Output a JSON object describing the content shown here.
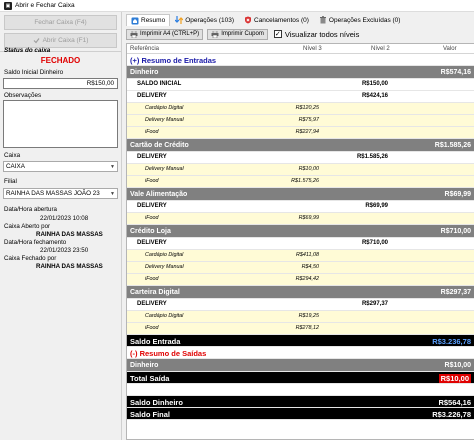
{
  "window": {
    "title": "Abrir e Fechar Caixa"
  },
  "left": {
    "fechar_label": "Fechar Caixa (F4)",
    "abrir_label": "Abrir Caixa (F1)",
    "status_label": "Status do caixa",
    "status_value": "FECHADO",
    "saldo_inicial_label": "Saldo Inicial Dinheiro",
    "saldo_inicial_value": "R$150,00",
    "observacoes_label": "Observações",
    "caixa_label": "Caixa",
    "caixa_value": "CAIXA",
    "filial_label": "Filial",
    "filial_value": "RAINHA DAS MASSAS JOÃO 23",
    "abertura_label": "Data/Hora abertura",
    "abertura_value": "22/01/2023 10:08",
    "aberto_por_label": "Caixa Aberto por",
    "aberto_por_value": "RAINHA DAS MASSAS",
    "fechamento_label": "Data/Hora fechamento",
    "fechamento_value": "22/01/2023 23:50",
    "fechado_por_label": "Caixa Fechado por",
    "fechado_por_value": "RAINHA DAS MASSAS"
  },
  "tabs": [
    {
      "label": "Resumo"
    },
    {
      "label": "Operações (103)"
    },
    {
      "label": "Cancelamentos (0)"
    },
    {
      "label": "Operações Excluídas (0)"
    }
  ],
  "toolbar": {
    "print_a4": "Imprimir A4 (CTRL+P)",
    "print_cupom": "Imprimir Cupom",
    "visualizar": "Visualizar todos níveis"
  },
  "grid": {
    "headers": {
      "ref": "Referência",
      "n3": "Nível 3",
      "n2": "Nível 2",
      "valor": "Valor"
    },
    "rows": [
      {
        "kind": "sec",
        "ref": "(+) Resumo de Entradas"
      },
      {
        "kind": "grey",
        "ref": "Dinheiro",
        "valor": "R$574,16"
      },
      {
        "kind": "white",
        "ref": "SALDO INICIAL",
        "n2": "R$150,00"
      },
      {
        "kind": "white",
        "ref": "DELIVERY",
        "n2": "R$424,16"
      },
      {
        "kind": "sub",
        "ref": "Cardápio Digital",
        "n3": "R$120,25"
      },
      {
        "kind": "sub",
        "ref": "Delivery Manual",
        "n3": "R$75,97"
      },
      {
        "kind": "sub",
        "ref": "iFood",
        "n3": "R$227,94"
      },
      {
        "kind": "grey",
        "ref": "Cartão de Crédito",
        "valor": "R$1.585,26"
      },
      {
        "kind": "white",
        "ref": "DELIVERY",
        "n2": "R$1.585,26"
      },
      {
        "kind": "sub",
        "ref": "Delivery Manual",
        "n3": "R$10,00"
      },
      {
        "kind": "sub",
        "ref": "iFood",
        "n3": "R$1.575,26"
      },
      {
        "kind": "grey",
        "ref": "Vale Alimentação",
        "valor": "R$69,99"
      },
      {
        "kind": "white",
        "ref": "DELIVERY",
        "n2": "R$69,99"
      },
      {
        "kind": "sub",
        "ref": "iFood",
        "n3": "R$69,99"
      },
      {
        "kind": "grey",
        "ref": "Crédito Loja",
        "valor": "R$710,00"
      },
      {
        "kind": "white",
        "ref": "DELIVERY",
        "n2": "R$710,00"
      },
      {
        "kind": "sub",
        "ref": "Cardápio Digital",
        "n3": "R$411,08"
      },
      {
        "kind": "sub",
        "ref": "Delivery Manual",
        "n3": "R$4,50"
      },
      {
        "kind": "sub",
        "ref": "iFood",
        "n3": "R$294,42"
      },
      {
        "kind": "grey",
        "ref": "Carteira Digital",
        "valor": "R$297,37"
      },
      {
        "kind": "white",
        "ref": "DELIVERY",
        "n2": "R$297,37"
      },
      {
        "kind": "sub",
        "ref": "Cardápio Digital",
        "n3": "R$19,25"
      },
      {
        "kind": "sub",
        "ref": "iFood",
        "n3": "R$278,12"
      },
      {
        "kind": "black",
        "ref": "Saldo Entrada",
        "valor": "R$3.236,78",
        "valor_style": "blue"
      },
      {
        "kind": "secr",
        "ref": "(-) Resumo de Saídas"
      },
      {
        "kind": "grey",
        "ref": "Dinheiro",
        "valor": "R$10,00"
      },
      {
        "kind": "black",
        "ref": "Total Saída",
        "valor": "R$10,00",
        "valor_style": "red"
      },
      {
        "kind": "gap",
        "ref": ""
      },
      {
        "kind": "black",
        "ref": "Saldo Dinheiro",
        "valor": "R$564,16"
      },
      {
        "kind": "black",
        "ref": "Saldo Final",
        "valor": "R$3.226,78"
      }
    ]
  }
}
